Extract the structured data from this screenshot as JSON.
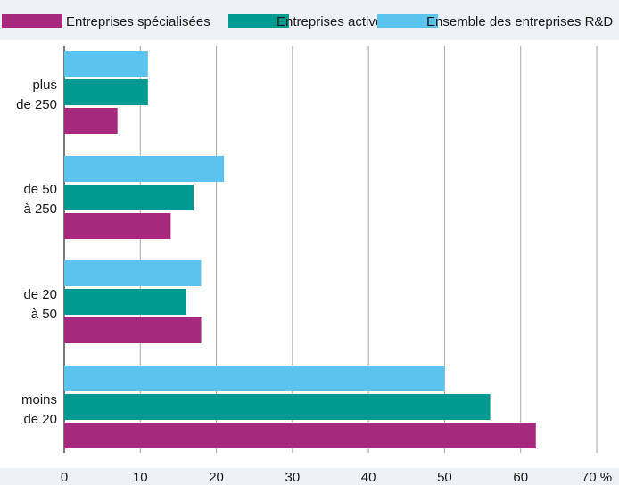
{
  "chart_data": {
    "type": "bar",
    "orientation": "horizontal",
    "title": "",
    "xlabel": "",
    "ylabel": "",
    "categories": [
      [
        "plus",
        "de 250"
      ],
      [
        "de 50",
        "à 250"
      ],
      [
        "de 20",
        "à 50"
      ],
      [
        "moins",
        "de 20"
      ]
    ],
    "series": [
      {
        "name": "Ensemble des entreprises R&D",
        "color": "#5bc4ee",
        "values": [
          11,
          21,
          18,
          50
        ]
      },
      {
        "name": "Entreprises actives",
        "color": "#009a90",
        "values": [
          11,
          17,
          16,
          56
        ]
      },
      {
        "name": "Entreprises spécialisées",
        "color": "#a8287e",
        "values": [
          7,
          14,
          18,
          62
        ]
      }
    ],
    "legend": {
      "placement": "top",
      "order": [
        2,
        1,
        0
      ]
    },
    "xlim": [
      0,
      70
    ],
    "xticks": [
      0,
      10,
      20,
      30,
      40,
      50,
      60,
      70
    ],
    "xtick_labels": [
      "0",
      "10",
      "20",
      "30",
      "40",
      "50",
      "60",
      "70 %"
    ],
    "grid": "vertical"
  }
}
